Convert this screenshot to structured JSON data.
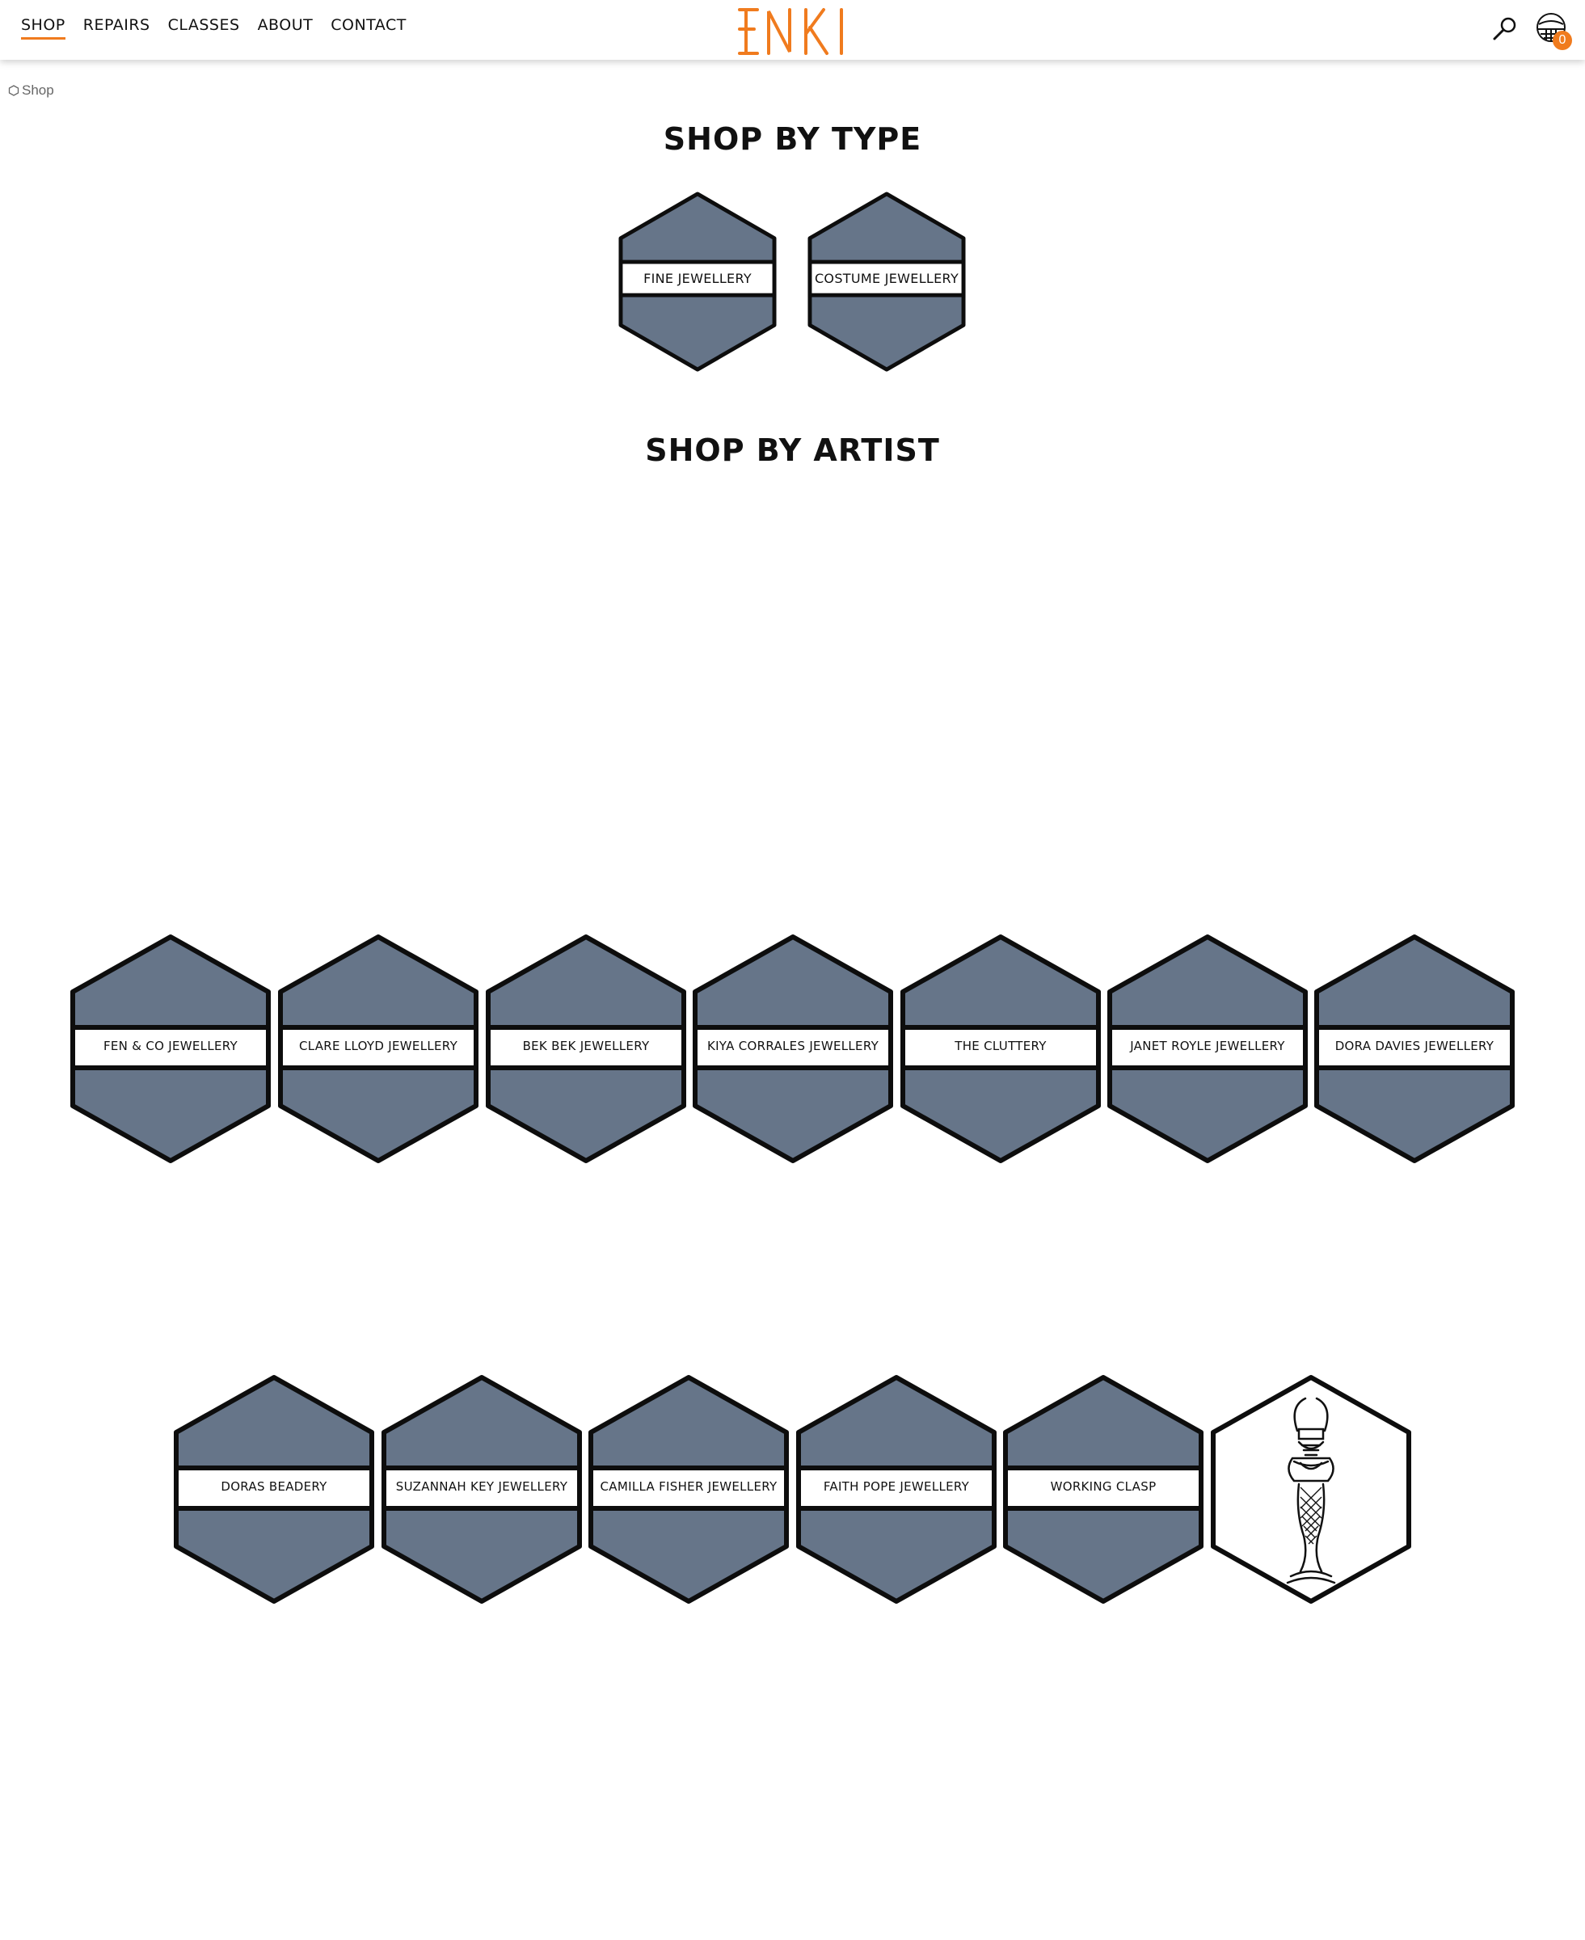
{
  "header": {
    "nav": [
      "SHOP",
      "REPAIRS",
      "CLASSES",
      "ABOUT",
      "CONTACT"
    ],
    "logo_text": "ENKI",
    "cart_count": "0"
  },
  "breadcrumb": {
    "label": "Shop"
  },
  "sections": {
    "type_title": "SHOP BY TYPE",
    "artist_title": "SHOP BY ARTIST"
  },
  "types": [
    "FINE JEWELLERY",
    "COSTUME JEWELLERY"
  ],
  "artists_row1": [
    "FEN & CO JEWELLERY",
    "CLARE LLOYD JEWELLERY",
    "BEK BEK JEWELLERY",
    "KIYA CORRALES JEWELLERY",
    "THE CLUTTERY",
    "JANET ROYLE JEWELLERY",
    "DORA DAVIES JEWELLERY"
  ],
  "artists_row2": [
    "DORAS BEADERY",
    "SUZANNAH KEY JEWELLERY",
    "CAMILLA FISHER JEWELLERY",
    "FAITH POPE JEWELLERY",
    "WORKING CLASP"
  ],
  "colors": {
    "accent": "#f07b1e",
    "hex_fill": "#667589",
    "outline": "#0d0d0d"
  },
  "icons": {
    "search": "search-icon",
    "cart": "basket-icon",
    "mascot": "bull-headed-mermaid-icon"
  }
}
